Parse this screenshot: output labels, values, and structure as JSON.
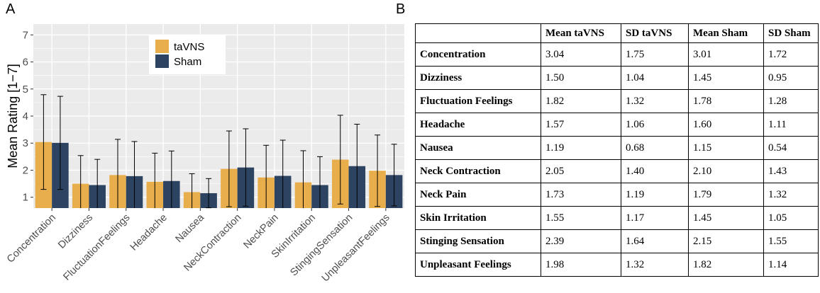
{
  "panels": {
    "a": "A",
    "b": "B"
  },
  "colors": {
    "taVNS": "#e8ae4c",
    "Sham": "#2c4461",
    "panel_bg": "#ebebeb",
    "grid": "#ffffff",
    "errorbar": "#000000"
  },
  "chart_data": {
    "type": "bar",
    "ylabel": "Mean Rating [1−7]",
    "xlabel": "",
    "ylim": [
      0.6,
      7.4
    ],
    "yticks": [
      1,
      2,
      3,
      4,
      5,
      6,
      7
    ],
    "categories": [
      "Concentration",
      "Dizziness",
      "FluctuationFeelings",
      "Headache",
      "Nausea",
      "NeckContraction",
      "NeckPain",
      "SkinIrritation",
      "StingingSensation",
      "UnpleasantFeelings"
    ],
    "series": [
      {
        "name": "taVNS",
        "values": [
          3.04,
          1.5,
          1.82,
          1.57,
          1.19,
          2.05,
          1.73,
          1.55,
          2.39,
          1.98
        ],
        "sd": [
          1.75,
          1.04,
          1.32,
          1.06,
          0.68,
          1.4,
          1.19,
          1.17,
          1.64,
          1.32
        ]
      },
      {
        "name": "Sham",
        "values": [
          3.01,
          1.45,
          1.78,
          1.6,
          1.15,
          2.1,
          1.79,
          1.45,
          2.15,
          1.82
        ],
        "sd": [
          1.72,
          0.95,
          1.28,
          1.11,
          0.54,
          1.43,
          1.32,
          1.05,
          1.55,
          1.14
        ]
      }
    ],
    "legend": {
      "position": "top-center",
      "entries": [
        "taVNS",
        "Sham"
      ]
    }
  },
  "table": {
    "headers": [
      "",
      "Mean taVNS",
      "SD taVNS",
      "Mean Sham",
      "SD Sham"
    ],
    "rows": [
      [
        "Concentration",
        "3.04",
        "1.75",
        "3.01",
        "1.72"
      ],
      [
        "Dizziness",
        "1.50",
        "1.04",
        "1.45",
        "0.95"
      ],
      [
        "Fluctuation Feelings",
        "1.82",
        "1.32",
        "1.78",
        "1.28"
      ],
      [
        "Headache",
        "1.57",
        "1.06",
        "1.60",
        "1.11"
      ],
      [
        "Nausea",
        "1.19",
        "0.68",
        "1.15",
        "0.54"
      ],
      [
        "Neck Contraction",
        "2.05",
        "1.40",
        "2.10",
        "1.43"
      ],
      [
        "Neck Pain",
        "1.73",
        "1.19",
        "1.79",
        "1.32"
      ],
      [
        "Skin Irritation",
        "1.55",
        "1.17",
        "1.45",
        "1.05"
      ],
      [
        "Stinging Sensation",
        "2.39",
        "1.64",
        "2.15",
        "1.55"
      ],
      [
        "Unpleasant Feelings",
        "1.98",
        "1.32",
        "1.82",
        "1.14"
      ]
    ]
  }
}
